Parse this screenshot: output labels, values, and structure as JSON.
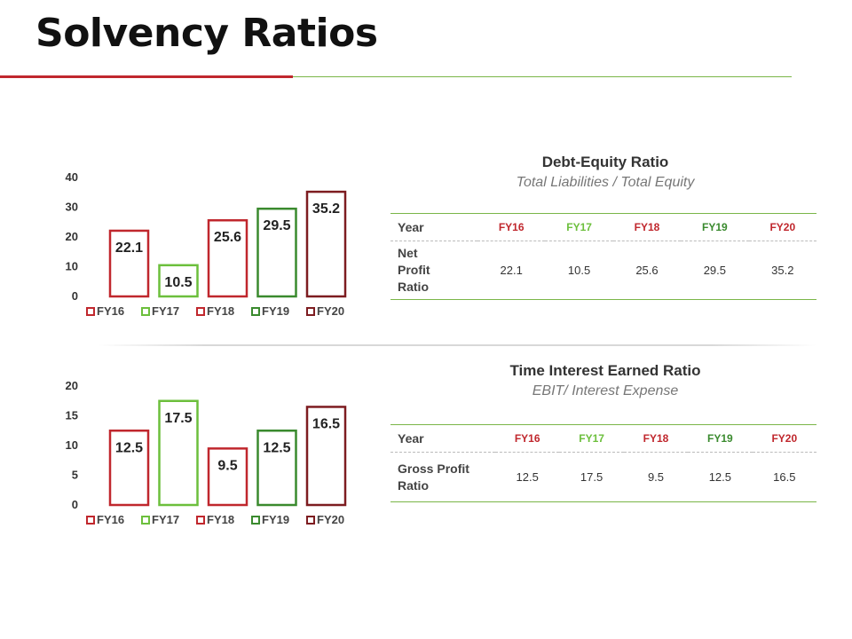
{
  "page": {
    "title": "Solvency Ratios"
  },
  "colors": {
    "FY16": "#c0272d",
    "FY17": "#6cbf3c",
    "FY18": "#c0272d",
    "FY19": "#3a8a2e",
    "FY20": "#7d1c20"
  },
  "sections": [
    {
      "heading": {
        "title": "Debt-Equity Ratio",
        "formula": "Total Liabilities / Total Equity"
      },
      "table": {
        "header_label": "Year",
        "columns": [
          "FY16",
          "FY17",
          "FY18",
          "FY19",
          "FY20"
        ],
        "row_label": "Net Profit Ratio",
        "values": [
          "22.1",
          "10.5",
          "25.6",
          "29.5",
          "35.2"
        ]
      }
    },
    {
      "heading": {
        "title": "Time Interest Earned Ratio",
        "formula": "EBIT/ Interest Expense"
      },
      "table": {
        "header_label": "Year",
        "columns": [
          "FY16",
          "FY17",
          "FY18",
          "FY19",
          "FY20"
        ],
        "row_label": "Gross Profit Ratio",
        "values": [
          "12.5",
          "17.5",
          "9.5",
          "12.5",
          "16.5"
        ]
      }
    }
  ],
  "chart_data": [
    {
      "type": "bar",
      "categories": [
        "FY16",
        "FY17",
        "FY18",
        "FY19",
        "FY20"
      ],
      "values": [
        22.1,
        10.5,
        25.6,
        29.5,
        35.2
      ],
      "ylim": [
        0,
        40
      ],
      "yticks": [
        0,
        10,
        20,
        30,
        40
      ],
      "legend": {
        "position": "bottom",
        "entries": [
          "FY16",
          "FY17",
          "FY18",
          "FY19",
          "FY20"
        ]
      },
      "grid": false
    },
    {
      "type": "bar",
      "categories": [
        "FY16",
        "FY17",
        "FY18",
        "FY19",
        "FY20"
      ],
      "values": [
        12.5,
        17.5,
        9.5,
        12.5,
        16.5
      ],
      "ylim": [
        0,
        20
      ],
      "yticks": [
        0,
        5,
        10,
        15,
        20
      ],
      "legend": {
        "position": "bottom",
        "entries": [
          "FY16",
          "FY17",
          "FY18",
          "FY19",
          "FY20"
        ]
      },
      "grid": false
    }
  ]
}
